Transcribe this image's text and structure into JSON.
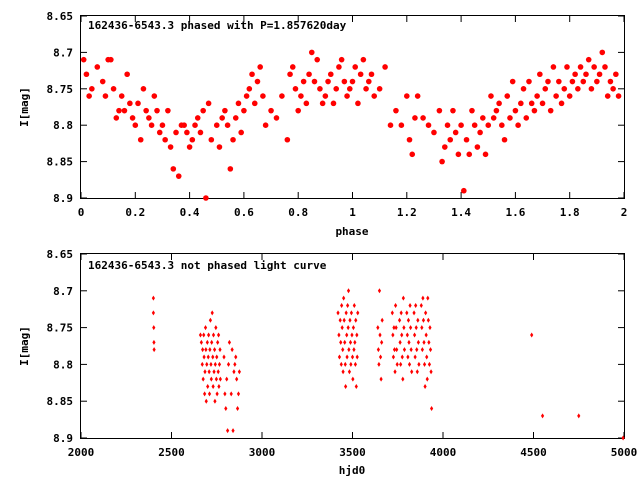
{
  "chart_data": [
    {
      "type": "scatter",
      "title": "162436-6543.3 phased with P=1.857620day",
      "xlabel": "phase",
      "ylabel": "I[mag]",
      "xlim": [
        0,
        2
      ],
      "ylim": [
        8.65,
        8.9
      ],
      "y_inverted": true,
      "grid": false,
      "marker_color": "#ff0000",
      "marker": "filled-circle",
      "x_ticks": [
        "0",
        "0.2",
        "0.4",
        "0.6",
        "0.8",
        "1",
        "1.2",
        "1.4",
        "1.6",
        "1.8",
        "2"
      ],
      "y_ticks": [
        "8.65",
        "8.7",
        "8.75",
        "8.8",
        "8.85",
        "8.9"
      ],
      "points": [
        [
          0.01,
          8.71
        ],
        [
          0.02,
          8.73
        ],
        [
          0.03,
          8.76
        ],
        [
          0.04,
          8.75
        ],
        [
          0.06,
          8.72
        ],
        [
          0.08,
          8.74
        ],
        [
          0.09,
          8.76
        ],
        [
          0.1,
          8.71
        ],
        [
          0.11,
          8.71
        ],
        [
          0.12,
          8.75
        ],
        [
          0.13,
          8.79
        ],
        [
          0.14,
          8.78
        ],
        [
          0.15,
          8.76
        ],
        [
          0.16,
          8.78
        ],
        [
          0.17,
          8.73
        ],
        [
          0.18,
          8.77
        ],
        [
          0.19,
          8.79
        ],
        [
          0.2,
          8.8
        ],
        [
          0.21,
          8.77
        ],
        [
          0.22,
          8.82
        ],
        [
          0.23,
          8.75
        ],
        [
          0.24,
          8.78
        ],
        [
          0.25,
          8.79
        ],
        [
          0.26,
          8.8
        ],
        [
          0.27,
          8.76
        ],
        [
          0.28,
          8.78
        ],
        [
          0.29,
          8.81
        ],
        [
          0.3,
          8.8
        ],
        [
          0.31,
          8.82
        ],
        [
          0.32,
          8.78
        ],
        [
          0.33,
          8.83
        ],
        [
          0.34,
          8.86
        ],
        [
          0.35,
          8.81
        ],
        [
          0.36,
          8.87
        ],
        [
          0.37,
          8.8
        ],
        [
          0.38,
          8.8
        ],
        [
          0.39,
          8.81
        ],
        [
          0.4,
          8.83
        ],
        [
          0.41,
          8.82
        ],
        [
          0.42,
          8.8
        ],
        [
          0.43,
          8.79
        ],
        [
          0.44,
          8.81
        ],
        [
          0.45,
          8.78
        ],
        [
          0.46,
          8.9
        ],
        [
          0.47,
          8.77
        ],
        [
          0.48,
          8.82
        ],
        [
          0.5,
          8.8
        ],
        [
          0.51,
          8.83
        ],
        [
          0.52,
          8.79
        ],
        [
          0.53,
          8.78
        ],
        [
          0.54,
          8.8
        ],
        [
          0.55,
          8.86
        ],
        [
          0.56,
          8.82
        ],
        [
          0.57,
          8.79
        ],
        [
          0.58,
          8.77
        ],
        [
          0.59,
          8.81
        ],
        [
          0.6,
          8.78
        ],
        [
          0.61,
          8.76
        ],
        [
          0.62,
          8.75
        ],
        [
          0.63,
          8.73
        ],
        [
          0.64,
          8.77
        ],
        [
          0.65,
          8.74
        ],
        [
          0.66,
          8.72
        ],
        [
          0.67,
          8.76
        ],
        [
          0.68,
          8.8
        ],
        [
          0.7,
          8.78
        ],
        [
          0.72,
          8.79
        ],
        [
          0.74,
          8.76
        ],
        [
          0.76,
          8.82
        ],
        [
          0.77,
          8.73
        ],
        [
          0.78,
          8.72
        ],
        [
          0.79,
          8.75
        ],
        [
          0.8,
          8.78
        ],
        [
          0.81,
          8.76
        ],
        [
          0.82,
          8.74
        ],
        [
          0.83,
          8.77
        ],
        [
          0.84,
          8.73
        ],
        [
          0.85,
          8.7
        ],
        [
          0.86,
          8.74
        ],
        [
          0.87,
          8.71
        ],
        [
          0.88,
          8.75
        ],
        [
          0.89,
          8.77
        ],
        [
          0.9,
          8.76
        ],
        [
          0.91,
          8.74
        ],
        [
          0.92,
          8.73
        ],
        [
          0.93,
          8.77
        ],
        [
          0.94,
          8.75
        ],
        [
          0.95,
          8.72
        ],
        [
          0.96,
          8.71
        ],
        [
          0.97,
          8.74
        ],
        [
          0.98,
          8.76
        ],
        [
          0.99,
          8.75
        ],
        [
          1.0,
          8.74
        ],
        [
          1.01,
          8.72
        ],
        [
          1.02,
          8.77
        ],
        [
          1.03,
          8.73
        ],
        [
          1.04,
          8.71
        ],
        [
          1.05,
          8.75
        ],
        [
          1.06,
          8.74
        ],
        [
          1.07,
          8.73
        ],
        [
          1.08,
          8.76
        ],
        [
          1.1,
          8.75
        ],
        [
          1.12,
          8.72
        ],
        [
          1.14,
          8.8
        ],
        [
          1.16,
          8.78
        ],
        [
          1.18,
          8.8
        ],
        [
          1.2,
          8.76
        ],
        [
          1.21,
          8.82
        ],
        [
          1.22,
          8.84
        ],
        [
          1.23,
          8.79
        ],
        [
          1.24,
          8.76
        ],
        [
          1.26,
          8.79
        ],
        [
          1.28,
          8.8
        ],
        [
          1.3,
          8.81
        ],
        [
          1.32,
          8.78
        ],
        [
          1.33,
          8.85
        ],
        [
          1.34,
          8.83
        ],
        [
          1.35,
          8.8
        ],
        [
          1.36,
          8.82
        ],
        [
          1.37,
          8.78
        ],
        [
          1.38,
          8.81
        ],
        [
          1.39,
          8.84
        ],
        [
          1.4,
          8.8
        ],
        [
          1.41,
          8.89
        ],
        [
          1.42,
          8.82
        ],
        [
          1.43,
          8.84
        ],
        [
          1.44,
          8.78
        ],
        [
          1.45,
          8.8
        ],
        [
          1.46,
          8.83
        ],
        [
          1.47,
          8.81
        ],
        [
          1.48,
          8.79
        ],
        [
          1.49,
          8.84
        ],
        [
          1.5,
          8.8
        ],
        [
          1.51,
          8.76
        ],
        [
          1.52,
          8.79
        ],
        [
          1.53,
          8.78
        ],
        [
          1.54,
          8.77
        ],
        [
          1.55,
          8.8
        ],
        [
          1.56,
          8.82
        ],
        [
          1.57,
          8.76
        ],
        [
          1.58,
          8.79
        ],
        [
          1.59,
          8.74
        ],
        [
          1.6,
          8.78
        ],
        [
          1.61,
          8.8
        ],
        [
          1.62,
          8.77
        ],
        [
          1.63,
          8.75
        ],
        [
          1.64,
          8.79
        ],
        [
          1.65,
          8.74
        ],
        [
          1.66,
          8.77
        ],
        [
          1.67,
          8.78
        ],
        [
          1.68,
          8.76
        ],
        [
          1.69,
          8.73
        ],
        [
          1.7,
          8.77
        ],
        [
          1.71,
          8.75
        ],
        [
          1.72,
          8.74
        ],
        [
          1.73,
          8.78
        ],
        [
          1.74,
          8.72
        ],
        [
          1.75,
          8.76
        ],
        [
          1.76,
          8.74
        ],
        [
          1.77,
          8.77
        ],
        [
          1.78,
          8.75
        ],
        [
          1.79,
          8.72
        ],
        [
          1.8,
          8.76
        ],
        [
          1.81,
          8.74
        ],
        [
          1.82,
          8.73
        ],
        [
          1.83,
          8.75
        ],
        [
          1.84,
          8.72
        ],
        [
          1.85,
          8.74
        ],
        [
          1.86,
          8.73
        ],
        [
          1.87,
          8.71
        ],
        [
          1.88,
          8.75
        ],
        [
          1.89,
          8.72
        ],
        [
          1.9,
          8.74
        ],
        [
          1.91,
          8.73
        ],
        [
          1.92,
          8.7
        ],
        [
          1.93,
          8.72
        ],
        [
          1.94,
          8.76
        ],
        [
          1.95,
          8.74
        ],
        [
          1.96,
          8.75
        ],
        [
          1.97,
          8.73
        ],
        [
          1.98,
          8.76
        ]
      ]
    },
    {
      "type": "scatter",
      "title": "162436-6543.3 not phased light curve",
      "xlabel": "hjd0",
      "ylabel": "I[mag]",
      "xlim": [
        2000,
        5000
      ],
      "ylim": [
        8.65,
        8.9
      ],
      "y_inverted": true,
      "grid": false,
      "marker_color": "#ff0000",
      "marker": "diamond",
      "x_ticks": [
        "2000",
        "2500",
        "3000",
        "3500",
        "4000",
        "4500",
        "5000"
      ],
      "y_ticks": [
        "8.65",
        "8.7",
        "8.75",
        "8.8",
        "8.85",
        "8.9"
      ],
      "points": [
        [
          2400,
          8.71
        ],
        [
          2400,
          8.73
        ],
        [
          2402,
          8.75
        ],
        [
          2403,
          8.77
        ],
        [
          2404,
          8.78
        ],
        [
          2660,
          8.76
        ],
        [
          2665,
          8.77
        ],
        [
          2670,
          8.8
        ],
        [
          2672,
          8.78
        ],
        [
          2675,
          8.82
        ],
        [
          2678,
          8.76
        ],
        [
          2680,
          8.79
        ],
        [
          2683,
          8.84
        ],
        [
          2685,
          8.81
        ],
        [
          2688,
          8.75
        ],
        [
          2690,
          8.78
        ],
        [
          2692,
          8.85
        ],
        [
          2695,
          8.8
        ],
        [
          2698,
          8.77
        ],
        [
          2700,
          8.83
        ],
        [
          2703,
          8.79
        ],
        [
          2705,
          8.76
        ],
        [
          2708,
          8.81
        ],
        [
          2710,
          8.84
        ],
        [
          2712,
          8.78
        ],
        [
          2715,
          8.74
        ],
        [
          2718,
          8.8
        ],
        [
          2720,
          8.82
        ],
        [
          2722,
          8.77
        ],
        [
          2725,
          8.73
        ],
        [
          2728,
          8.79
        ],
        [
          2730,
          8.83
        ],
        [
          2732,
          8.76
        ],
        [
          2735,
          8.81
        ],
        [
          2738,
          8.78
        ],
        [
          2740,
          8.85
        ],
        [
          2742,
          8.8
        ],
        [
          2745,
          8.75
        ],
        [
          2748,
          8.82
        ],
        [
          2750,
          8.79
        ],
        [
          2752,
          8.84
        ],
        [
          2755,
          8.77
        ],
        [
          2758,
          8.81
        ],
        [
          2760,
          8.76
        ],
        [
          2762,
          8.83
        ],
        [
          2765,
          8.8
        ],
        [
          2768,
          8.78
        ],
        [
          2770,
          8.82
        ],
        [
          2790,
          8.79
        ],
        [
          2795,
          8.84
        ],
        [
          2800,
          8.86
        ],
        [
          2805,
          8.82
        ],
        [
          2810,
          8.89
        ],
        [
          2815,
          8.8
        ],
        [
          2820,
          8.77
        ],
        [
          2830,
          8.84
        ],
        [
          2835,
          8.78
        ],
        [
          2840,
          8.89
        ],
        [
          2845,
          8.81
        ],
        [
          2850,
          8.8
        ],
        [
          2855,
          8.79
        ],
        [
          2860,
          8.82
        ],
        [
          2865,
          8.86
        ],
        [
          2870,
          8.84
        ],
        [
          2875,
          8.81
        ],
        [
          3420,
          8.73
        ],
        [
          3425,
          8.76
        ],
        [
          3428,
          8.79
        ],
        [
          3432,
          8.74
        ],
        [
          3435,
          8.77
        ],
        [
          3438,
          8.8
        ],
        [
          3440,
          8.72
        ],
        [
          3443,
          8.75
        ],
        [
          3446,
          8.78
        ],
        [
          3448,
          8.81
        ],
        [
          3451,
          8.71
        ],
        [
          3454,
          8.74
        ],
        [
          3457,
          8.77
        ],
        [
          3460,
          8.8
        ],
        [
          3462,
          8.83
        ],
        [
          3465,
          8.73
        ],
        [
          3468,
          8.76
        ],
        [
          3470,
          8.79
        ],
        [
          3473,
          8.72
        ],
        [
          3476,
          8.75
        ],
        [
          3478,
          8.7
        ],
        [
          3480,
          8.78
        ],
        [
          3483,
          8.81
        ],
        [
          3486,
          8.74
        ],
        [
          3489,
          8.77
        ],
        [
          3491,
          8.8
        ],
        [
          3494,
          8.73
        ],
        [
          3497,
          8.76
        ],
        [
          3500,
          8.79
        ],
        [
          3502,
          8.82
        ],
        [
          3505,
          8.75
        ],
        [
          3508,
          8.78
        ],
        [
          3510,
          8.72
        ],
        [
          3513,
          8.77
        ],
        [
          3516,
          8.8
        ],
        [
          3518,
          8.74
        ],
        [
          3521,
          8.83
        ],
        [
          3524,
          8.76
        ],
        [
          3526,
          8.79
        ],
        [
          3529,
          8.73
        ],
        [
          3640,
          8.75
        ],
        [
          3643,
          8.78
        ],
        [
          3646,
          8.8
        ],
        [
          3649,
          8.7
        ],
        [
          3652,
          8.76
        ],
        [
          3655,
          8.79
        ],
        [
          3658,
          8.82
        ],
        [
          3661,
          8.77
        ],
        [
          3664,
          8.74
        ],
        [
          3720,
          8.73
        ],
        [
          3723,
          8.76
        ],
        [
          3726,
          8.79
        ],
        [
          3729,
          8.75
        ],
        [
          3732,
          8.78
        ],
        [
          3735,
          8.81
        ],
        [
          3738,
          8.72
        ],
        [
          3741,
          8.75
        ],
        [
          3744,
          8.78
        ],
        [
          3747,
          8.8
        ],
        [
          3760,
          8.74
        ],
        [
          3763,
          8.77
        ],
        [
          3766,
          8.8
        ],
        [
          3769,
          8.73
        ],
        [
          3772,
          8.76
        ],
        [
          3775,
          8.79
        ],
        [
          3778,
          8.82
        ],
        [
          3781,
          8.71
        ],
        [
          3784,
          8.75
        ],
        [
          3787,
          8.78
        ],
        [
          3800,
          8.73
        ],
        [
          3803,
          8.76
        ],
        [
          3806,
          8.79
        ],
        [
          3809,
          8.74
        ],
        [
          3812,
          8.77
        ],
        [
          3815,
          8.8
        ],
        [
          3818,
          8.72
        ],
        [
          3821,
          8.75
        ],
        [
          3824,
          8.78
        ],
        [
          3827,
          8.81
        ],
        [
          3840,
          8.73
        ],
        [
          3843,
          8.76
        ],
        [
          3846,
          8.79
        ],
        [
          3849,
          8.72
        ],
        [
          3852,
          8.75
        ],
        [
          3855,
          8.78
        ],
        [
          3858,
          8.81
        ],
        [
          3861,
          8.74
        ],
        [
          3864,
          8.77
        ],
        [
          3867,
          8.8
        ],
        [
          3880,
          8.72
        ],
        [
          3883,
          8.75
        ],
        [
          3886,
          8.78
        ],
        [
          3889,
          8.71
        ],
        [
          3892,
          8.74
        ],
        [
          3895,
          8.77
        ],
        [
          3898,
          8.8
        ],
        [
          3901,
          8.83
        ],
        [
          3904,
          8.73
        ],
        [
          3907,
          8.76
        ],
        [
          3910,
          8.79
        ],
        [
          3913,
          8.82
        ],
        [
          3916,
          8.71
        ],
        [
          3919,
          8.74
        ],
        [
          3922,
          8.77
        ],
        [
          3925,
          8.8
        ],
        [
          3928,
          8.75
        ],
        [
          3931,
          8.78
        ],
        [
          3934,
          8.81
        ],
        [
          3937,
          8.86
        ],
        [
          4490,
          8.76
        ],
        [
          4550,
          8.87
        ],
        [
          4750,
          8.87
        ],
        [
          4995,
          8.9
        ]
      ]
    }
  ]
}
